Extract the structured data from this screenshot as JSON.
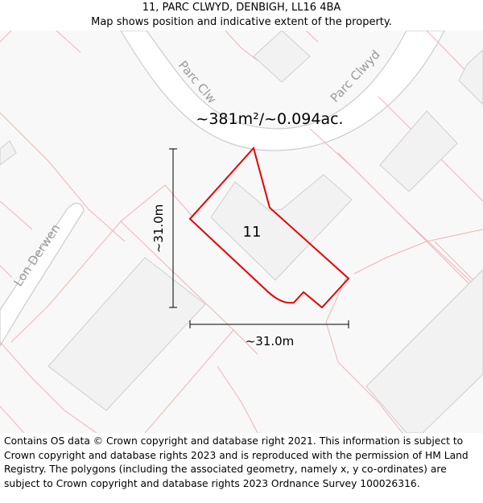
{
  "header": {
    "address": "11, PARC CLWYD, DENBIGH, LL16 4BA",
    "subtitle": "Map shows position and indicative extent of the property."
  },
  "map": {
    "area_label": "~381m²/~0.094ac.",
    "plot_number": "11",
    "dimension_vertical": "~31.0m",
    "dimension_horizontal": "~31.0m",
    "street_labels": [
      "Parc Clw",
      "Parc Clwyd",
      "Lon Derwen"
    ],
    "colors": {
      "boundary": "#e60000",
      "parcel_lines": "#f2b3b3",
      "building_fill": "#f2f2f2",
      "building_stroke": "#cfcfcf",
      "road_fill": "#ffffff",
      "road_stroke": "#cccccc"
    }
  },
  "footer": {
    "copyright": "Contains OS data © Crown copyright and database right 2021. This information is subject to Crown copyright and database rights 2023 and is reproduced with the permission of HM Land Registry. The polygons (including the associated geometry, namely x, y co-ordinates) are subject to Crown copyright and database rights 2023 Ordnance Survey 100026316."
  }
}
